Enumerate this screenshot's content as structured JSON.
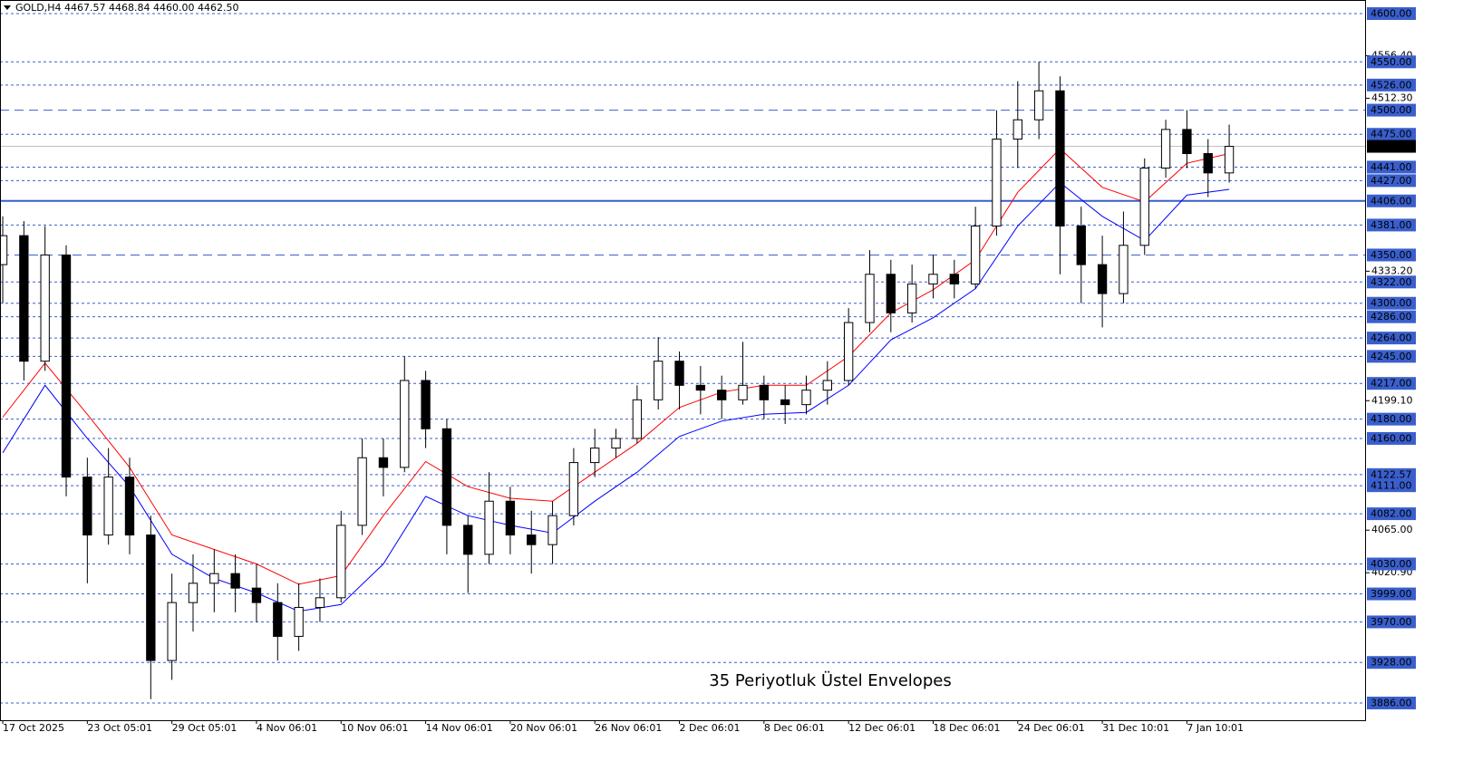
{
  "chart_data": {
    "type": "candlestick",
    "title": "GOLD,H4  4467.57 4468.84 4460.00 4462.50",
    "annotation": "35 Periyotluk Üstel Envelopes",
    "annotation_color": "#3a5fcd",
    "up_color": "#ffffff",
    "down_color": "#000000",
    "open": [
      4340,
      4370,
      4240,
      4350,
      4120,
      4060,
      4120,
      4060,
      3930,
      3990,
      4010,
      4020,
      4005,
      3990,
      3955,
      3985,
      3995,
      4070,
      4140,
      4130,
      4220,
      4170,
      4070,
      4040,
      4095,
      4060,
      4050,
      4080,
      4135,
      4150,
      4160,
      4200,
      4240,
      4215,
      4210,
      4200,
      4215,
      4200,
      4195,
      4210,
      4220,
      4280,
      4330,
      4290,
      4320,
      4330,
      4320,
      4380,
      4470,
      4490,
      4520,
      4380,
      4340,
      4310,
      4360,
      4440,
      4480,
      4455,
      4435
    ],
    "high": [
      4390,
      4385,
      4380,
      4360,
      4140,
      4150,
      4140,
      4080,
      4020,
      4040,
      4045,
      4040,
      4030,
      4010,
      4010,
      4015,
      4085,
      4160,
      4160,
      4245,
      4230,
      4180,
      4080,
      4125,
      4110,
      4085,
      4095,
      4150,
      4170,
      4170,
      4215,
      4265,
      4250,
      4235,
      4225,
      4260,
      4225,
      4215,
      4225,
      4240,
      4295,
      4355,
      4345,
      4340,
      4350,
      4345,
      4400,
      4500,
      4530,
      4550,
      4535,
      4400,
      4370,
      4395,
      4450,
      4490,
      4500,
      4470,
      4485
    ],
    "low": [
      4300,
      4220,
      4230,
      4100,
      4010,
      4050,
      4040,
      3890,
      3910,
      3960,
      3980,
      3980,
      3970,
      3930,
      3940,
      3970,
      3990,
      4060,
      4100,
      4125,
      4150,
      4040,
      4000,
      4030,
      4040,
      4020,
      4030,
      4070,
      4120,
      4140,
      4155,
      4190,
      4190,
      4185,
      4180,
      4195,
      4180,
      4175,
      4185,
      4195,
      4215,
      4270,
      4270,
      4280,
      4305,
      4305,
      4315,
      4370,
      4440,
      4470,
      4330,
      4300,
      4275,
      4300,
      4350,
      4430,
      4440,
      4410,
      4425
    ],
    "close": [
      4370,
      4240,
      4350,
      4120,
      4060,
      4120,
      4060,
      3930,
      3990,
      4010,
      4020,
      4005,
      3990,
      3955,
      3985,
      3995,
      4070,
      4140,
      4130,
      4220,
      4170,
      4070,
      4040,
      4095,
      4060,
      4050,
      4080,
      4135,
      4150,
      4160,
      4200,
      4240,
      4215,
      4210,
      4200,
      4215,
      4200,
      4195,
      4210,
      4220,
      4280,
      4330,
      4290,
      4320,
      4330,
      4320,
      4380,
      4470,
      4490,
      4520,
      4380,
      4340,
      4310,
      4360,
      4440,
      4480,
      4455,
      4435,
      4462.5
    ],
    "series": [
      {
        "type": "line",
        "color": "#ff0000",
        "x": [
          0,
          2,
          4,
          6,
          8,
          10,
          12,
          14,
          16,
          18,
          20,
          22,
          24,
          26,
          28,
          30,
          32,
          34,
          36,
          38,
          40,
          42,
          44,
          46,
          48,
          50,
          52,
          54,
          56,
          58
        ],
        "values": [
          4182,
          4238,
          4185,
          4130,
          4060,
          4045,
          4030,
          4009,
          4018,
          4080,
          4136,
          4110,
          4098,
          4095,
          4125,
          4155,
          4192,
          4208,
          4215,
          4215,
          4245,
          4290,
          4314,
          4345,
          4415,
          4460,
          4420,
          4405,
          4445,
          4455
        ]
      },
      {
        "type": "line",
        "color": "#0000ff",
        "x": [
          0,
          2,
          4,
          6,
          8,
          10,
          12,
          14,
          16,
          18,
          20,
          22,
          24,
          26,
          28,
          30,
          32,
          34,
          36,
          38,
          40,
          42,
          44,
          46,
          48,
          50,
          52,
          54,
          56,
          58
        ],
        "values": [
          4145,
          4215,
          4160,
          4110,
          4040,
          4015,
          4000,
          3981,
          3988,
          4030,
          4100,
          4080,
          4070,
          4062,
          4095,
          4125,
          4162,
          4178,
          4185,
          4187,
          4215,
          4262,
          4285,
          4315,
          4380,
          4425,
          4390,
          4365,
          4412,
          4418
        ]
      }
    ],
    "xlim": [
      -0.13,
      64.47
    ],
    "xticks": [
      {
        "value": 0,
        "label": "17 Oct 2025"
      },
      {
        "value": 4,
        "label": "23 Oct 05:01"
      },
      {
        "value": 8,
        "label": "29 Oct 05:01"
      },
      {
        "value": 12,
        "label": "4 Nov 06:01"
      },
      {
        "value": 16,
        "label": "10 Nov 06:01"
      },
      {
        "value": 20,
        "label": "14 Nov 06:01"
      },
      {
        "value": 24,
        "label": "20 Nov 06:01"
      },
      {
        "value": 28,
        "label": "26 Nov 06:01"
      },
      {
        "value": 32,
        "label": "2 Dec 06:01"
      },
      {
        "value": 36,
        "label": "8 Dec 06:01"
      },
      {
        "value": 40,
        "label": "12 Dec 06:01"
      },
      {
        "value": 44,
        "label": "18 Dec 06:01"
      },
      {
        "value": 48,
        "label": "24 Dec 06:01"
      },
      {
        "value": 52,
        "label": "31 Dec 10:01"
      },
      {
        "value": 56,
        "label": "7 Jan 10:01"
      }
    ],
    "ylim": [
      3868.15,
      4614.07
    ],
    "yticks": [
      {
        "value": 4556.4,
        "label": "4556.40"
      },
      {
        "value": 4512.3,
        "label": "4512.30"
      },
      {
        "value": 4333.2,
        "label": "4333.20"
      },
      {
        "value": 4199.1,
        "label": "4199.10"
      },
      {
        "value": 4065,
        "label": "4065.00"
      },
      {
        "value": 4020.9,
        "label": "4020.90"
      }
    ],
    "level_color": "#3a5fcd",
    "levels": [
      {
        "value": 4600,
        "label": "4600.00",
        "style": "dash"
      },
      {
        "value": 4550,
        "label": "4550.00",
        "style": "dash"
      },
      {
        "value": 4526,
        "label": "4526.00",
        "style": "dash"
      },
      {
        "value": 4500,
        "label": "4500.00",
        "style": "longdash"
      },
      {
        "value": 4475,
        "label": "4475.00",
        "style": "dash"
      },
      {
        "value": 4441,
        "label": "4441.00",
        "style": "dash"
      },
      {
        "value": 4427,
        "label": "4427.00",
        "style": "dash"
      },
      {
        "value": 4406,
        "label": "4406.00",
        "style": "solid"
      },
      {
        "value": 4381,
        "label": "4381.00",
        "style": "dash"
      },
      {
        "value": 4350,
        "label": "4350.00",
        "style": "longdash"
      },
      {
        "value": 4322,
        "label": "4322.00",
        "style": "dash"
      },
      {
        "value": 4300,
        "label": "4300.00",
        "style": "dash"
      },
      {
        "value": 4286,
        "label": "4286.00",
        "style": "dash"
      },
      {
        "value": 4264,
        "label": "4264.00",
        "style": "dash"
      },
      {
        "value": 4245,
        "label": "4245.00",
        "style": "dash"
      },
      {
        "value": 4217,
        "label": "4217.00",
        "style": "dash"
      },
      {
        "value": 4180,
        "label": "4180.00",
        "style": "dash"
      },
      {
        "value": 4160,
        "label": "4160.00",
        "style": "dash"
      },
      {
        "value": 4122.57,
        "label": "4122.57",
        "style": "dash"
      },
      {
        "value": 4111,
        "label": "4111.00",
        "style": "dash"
      },
      {
        "value": 4082,
        "label": "4082.00",
        "style": "dash"
      },
      {
        "value": 4030,
        "label": "4030.00",
        "style": "dash"
      },
      {
        "value": 3999,
        "label": "3999.00",
        "style": "dash"
      },
      {
        "value": 3970,
        "label": "3970.00",
        "style": "dash"
      },
      {
        "value": 3928,
        "label": "3928.00",
        "style": "dash"
      },
      {
        "value": 3886,
        "label": "3886.00",
        "style": "dash"
      }
    ],
    "last_price": {
      "value": 4462.5,
      "label": "4462.50"
    }
  }
}
